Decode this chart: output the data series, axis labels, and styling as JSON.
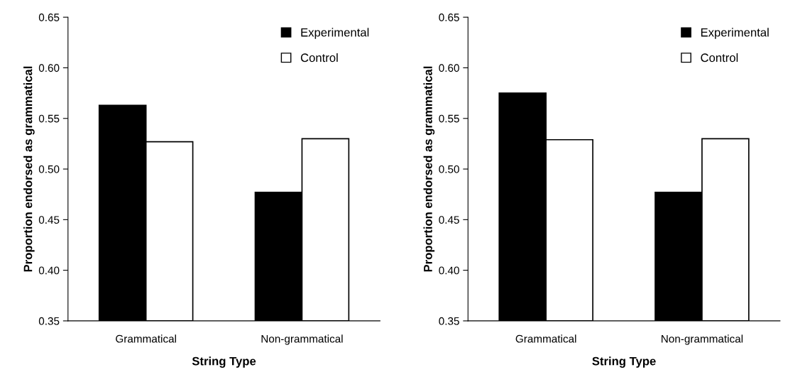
{
  "chart_data": [
    {
      "type": "bar",
      "xlabel": "String Type",
      "ylabel": "Proportion endorsed as grammatical",
      "categories": [
        "Grammatical",
        "Non-grammatical"
      ],
      "series": [
        {
          "name": "Experimental",
          "color": "#000000",
          "values": [
            0.563,
            0.477
          ]
        },
        {
          "name": "Control",
          "color": "#ffffff",
          "values": [
            0.527,
            0.53
          ]
        }
      ],
      "ylim": [
        0.35,
        0.65
      ],
      "yticks": [
        {
          "value": 0.35,
          "label": "0.35"
        },
        {
          "value": 0.4,
          "label": "0.40"
        },
        {
          "value": 0.45,
          "label": "0.45"
        },
        {
          "value": 0.5,
          "label": "0.50"
        },
        {
          "value": 0.55,
          "label": "0.55"
        },
        {
          "value": 0.6,
          "label": "0.60"
        },
        {
          "value": 0.65,
          "label": "0.65"
        }
      ],
      "grid": false,
      "legend": "top right"
    },
    {
      "type": "bar",
      "xlabel": "String Type",
      "ylabel": "Proportion endorsed as grammatical",
      "categories": [
        "Grammatical",
        "Non-grammatical"
      ],
      "series": [
        {
          "name": "Experimental",
          "color": "#000000",
          "values": [
            0.575,
            0.477
          ]
        },
        {
          "name": "Control",
          "color": "#ffffff",
          "values": [
            0.529,
            0.53
          ]
        }
      ],
      "ylim": [
        0.35,
        0.65
      ],
      "yticks": [
        {
          "value": 0.35,
          "label": "0.35"
        },
        {
          "value": 0.4,
          "label": "0.40"
        },
        {
          "value": 0.45,
          "label": "0.45"
        },
        {
          "value": 0.5,
          "label": "0.50"
        },
        {
          "value": 0.55,
          "label": "0.55"
        },
        {
          "value": 0.6,
          "label": "0.60"
        },
        {
          "value": 0.65,
          "label": "0.65"
        }
      ],
      "grid": false,
      "legend": "top right"
    }
  ]
}
